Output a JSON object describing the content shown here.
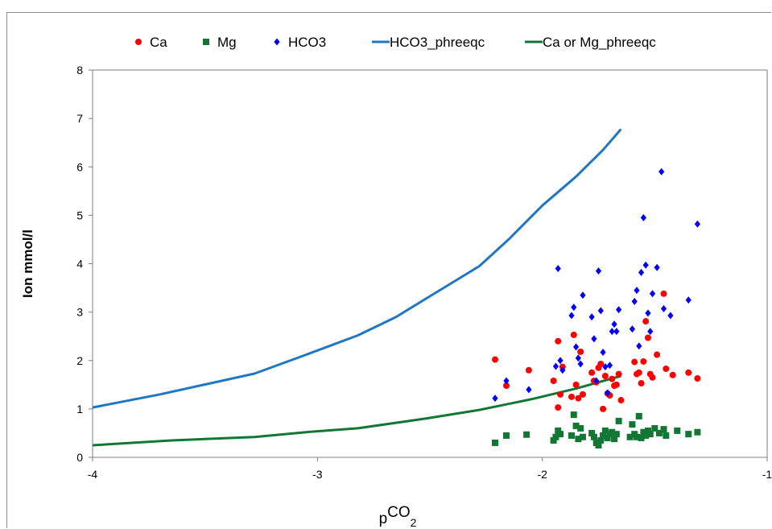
{
  "chart_data": {
    "type": "scatter",
    "title": "",
    "xlabel": "p",
    "xlabel_sup": "CO",
    "xlabel_sub": "2",
    "ylabel": "Ion mmol/l",
    "xlim": [
      -4,
      -1
    ],
    "ylim": [
      0,
      8
    ],
    "xticks": [
      -4,
      -3,
      -2,
      -1
    ],
    "xtick_labels": [
      "-4",
      "-3",
      "-2",
      "-1"
    ],
    "yticks": [
      0,
      1,
      2,
      3,
      4,
      5,
      6,
      7,
      8
    ],
    "ytick_labels": [
      "0",
      "1",
      "2",
      "3",
      "4",
      "5",
      "6",
      "7",
      "8"
    ],
    "grid": false,
    "legend_position": "top",
    "series": [
      {
        "name": "Ca",
        "kind": "points",
        "marker": "circle",
        "color": "#ff0000",
        "points": [
          [
            -2.21,
            2.02
          ],
          [
            -2.16,
            1.48
          ],
          [
            -2.06,
            1.8
          ],
          [
            -1.95,
            1.58
          ],
          [
            -1.93,
            1.03
          ],
          [
            -1.93,
            2.4
          ],
          [
            -1.92,
            1.3
          ],
          [
            -1.91,
            1.87
          ],
          [
            -1.87,
            1.25
          ],
          [
            -1.86,
            2.53
          ],
          [
            -1.85,
            1.5
          ],
          [
            -1.84,
            1.22
          ],
          [
            -1.83,
            2.18
          ],
          [
            -1.82,
            1.3
          ],
          [
            -1.78,
            1.75
          ],
          [
            -1.77,
            1.58
          ],
          [
            -1.76,
            1.55
          ],
          [
            -1.75,
            1.85
          ],
          [
            -1.74,
            1.93
          ],
          [
            -1.73,
            1.0
          ],
          [
            -1.72,
            1.68
          ],
          [
            -1.71,
            1.32
          ],
          [
            -1.7,
            1.28
          ],
          [
            -1.69,
            1.62
          ],
          [
            -1.68,
            1.48
          ],
          [
            -1.67,
            1.5
          ],
          [
            -1.66,
            1.72
          ],
          [
            -1.65,
            1.18
          ],
          [
            -1.59,
            1.97
          ],
          [
            -1.58,
            1.72
          ],
          [
            -1.57,
            1.75
          ],
          [
            -1.56,
            1.53
          ],
          [
            -1.55,
            1.98
          ],
          [
            -1.54,
            2.81
          ],
          [
            -1.53,
            2.47
          ],
          [
            -1.52,
            1.72
          ],
          [
            -1.51,
            1.65
          ],
          [
            -1.49,
            2.12
          ],
          [
            -1.46,
            3.38
          ],
          [
            -1.45,
            1.83
          ],
          [
            -1.42,
            1.7
          ],
          [
            -1.35,
            1.75
          ],
          [
            -1.31,
            1.63
          ]
        ]
      },
      {
        "name": "Mg",
        "kind": "points",
        "marker": "square",
        "color": "#117733",
        "points": [
          [
            -2.21,
            0.3
          ],
          [
            -2.16,
            0.45
          ],
          [
            -2.07,
            0.47
          ],
          [
            -1.95,
            0.35
          ],
          [
            -1.94,
            0.42
          ],
          [
            -1.93,
            0.55
          ],
          [
            -1.92,
            0.48
          ],
          [
            -1.87,
            0.45
          ],
          [
            -1.86,
            0.88
          ],
          [
            -1.85,
            0.65
          ],
          [
            -1.84,
            0.38
          ],
          [
            -1.83,
            0.6
          ],
          [
            -1.82,
            0.42
          ],
          [
            -1.78,
            0.5
          ],
          [
            -1.77,
            0.42
          ],
          [
            -1.76,
            0.3
          ],
          [
            -1.75,
            0.25
          ],
          [
            -1.74,
            0.35
          ],
          [
            -1.73,
            0.45
          ],
          [
            -1.72,
            0.55
          ],
          [
            -1.71,
            0.4
          ],
          [
            -1.7,
            0.48
          ],
          [
            -1.69,
            0.52
          ],
          [
            -1.68,
            0.38
          ],
          [
            -1.67,
            0.48
          ],
          [
            -1.66,
            0.75
          ],
          [
            -1.61,
            0.42
          ],
          [
            -1.6,
            0.68
          ],
          [
            -1.59,
            0.48
          ],
          [
            -1.58,
            0.42
          ],
          [
            -1.57,
            0.85
          ],
          [
            -1.56,
            0.4
          ],
          [
            -1.55,
            0.52
          ],
          [
            -1.54,
            0.45
          ],
          [
            -1.53,
            0.55
          ],
          [
            -1.52,
            0.48
          ],
          [
            -1.5,
            0.6
          ],
          [
            -1.48,
            0.5
          ],
          [
            -1.46,
            0.58
          ],
          [
            -1.45,
            0.45
          ],
          [
            -1.4,
            0.55
          ],
          [
            -1.35,
            0.48
          ],
          [
            -1.31,
            0.52
          ]
        ]
      },
      {
        "name": "HCO3",
        "kind": "points",
        "marker": "diamond",
        "color": "#0000ff",
        "points": [
          [
            -2.21,
            1.22
          ],
          [
            -2.16,
            1.58
          ],
          [
            -2.06,
            1.4
          ],
          [
            -1.94,
            1.88
          ],
          [
            -1.93,
            3.9
          ],
          [
            -1.92,
            2.0
          ],
          [
            -1.91,
            1.8
          ],
          [
            -1.87,
            2.93
          ],
          [
            -1.86,
            3.1
          ],
          [
            -1.85,
            2.28
          ],
          [
            -1.84,
            2.05
          ],
          [
            -1.83,
            1.93
          ],
          [
            -1.82,
            3.35
          ],
          [
            -1.78,
            2.9
          ],
          [
            -1.77,
            2.45
          ],
          [
            -1.76,
            1.58
          ],
          [
            -1.75,
            3.85
          ],
          [
            -1.74,
            3.03
          ],
          [
            -1.73,
            2.17
          ],
          [
            -1.72,
            1.87
          ],
          [
            -1.71,
            1.33
          ],
          [
            -1.7,
            1.9
          ],
          [
            -1.69,
            2.6
          ],
          [
            -1.68,
            2.75
          ],
          [
            -1.67,
            2.6
          ],
          [
            -1.66,
            3.05
          ],
          [
            -1.6,
            2.65
          ],
          [
            -1.59,
            3.22
          ],
          [
            -1.58,
            3.45
          ],
          [
            -1.57,
            2.3
          ],
          [
            -1.56,
            3.82
          ],
          [
            -1.55,
            4.95
          ],
          [
            -1.54,
            3.97
          ],
          [
            -1.53,
            2.98
          ],
          [
            -1.52,
            2.6
          ],
          [
            -1.51,
            3.38
          ],
          [
            -1.49,
            3.92
          ],
          [
            -1.47,
            5.9
          ],
          [
            -1.46,
            3.07
          ],
          [
            -1.43,
            2.93
          ],
          [
            -1.35,
            3.25
          ],
          [
            -1.31,
            4.82
          ]
        ]
      },
      {
        "name": "HCO3_phreeqc",
        "kind": "line",
        "color": "#1f77c4",
        "points": [
          [
            -4.0,
            1.03
          ],
          [
            -3.7,
            1.3
          ],
          [
            -3.28,
            1.73
          ],
          [
            -3.05,
            2.12
          ],
          [
            -2.82,
            2.52
          ],
          [
            -2.65,
            2.9
          ],
          [
            -2.52,
            3.27
          ],
          [
            -2.28,
            3.95
          ],
          [
            -2.15,
            4.5
          ],
          [
            -2.0,
            5.2
          ],
          [
            -1.85,
            5.8
          ],
          [
            -1.73,
            6.35
          ],
          [
            -1.65,
            6.78
          ]
        ]
      },
      {
        "name": "Ca or Mg_phreeqc",
        "kind": "line",
        "color": "#117733",
        "points": [
          [
            -4.0,
            0.25
          ],
          [
            -3.65,
            0.35
          ],
          [
            -3.28,
            0.42
          ],
          [
            -3.05,
            0.52
          ],
          [
            -2.82,
            0.6
          ],
          [
            -2.52,
            0.8
          ],
          [
            -2.28,
            0.98
          ],
          [
            -2.05,
            1.2
          ],
          [
            -1.85,
            1.42
          ],
          [
            -1.65,
            1.68
          ]
        ]
      }
    ]
  }
}
